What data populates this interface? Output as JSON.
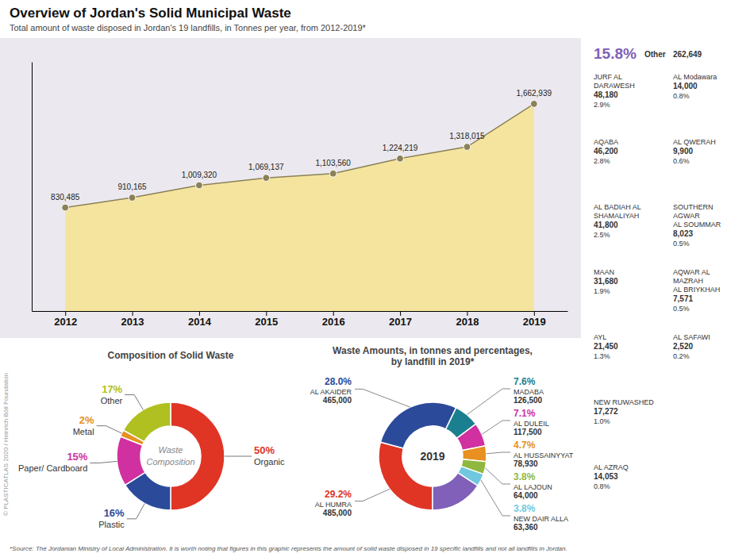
{
  "chart_data": [
    {
      "type": "area",
      "title": "Overview of Jordan's Solid Municipal Waste",
      "subtitle": "Total amount of waste disposed in Jordan's 19 landfills, in Tonnes per year, from 2012-2019*",
      "categories": [
        "2012",
        "2013",
        "2014",
        "2015",
        "2016",
        "2017",
        "2018",
        "2019"
      ],
      "values": [
        830485,
        910165,
        1009320,
        1069137,
        1103560,
        1224219,
        1318015,
        1662939
      ],
      "value_labels": [
        "830,485",
        "910,165",
        "1,009,320",
        "1,069,137",
        "1,103,560",
        "1,224,219",
        "1,318,015",
        "1,662,939"
      ],
      "data_labels": true,
      "color": "#f5e49e",
      "marker": "circle",
      "ylim": [
        0,
        2000000
      ],
      "tick_labels": "x",
      "annotations": [
        "*Source: The Jordanian Ministry of Local Administration. It is worth noting that figures in this graphic represents the amount of solid waste disposed in 19 specific landfills and not all landfills in Jordan.",
        "© PLASTICATLAS 2020 / Heinrich Böll Foundation"
      ]
    },
    {
      "type": "pie",
      "title": "Composition of Solid Waste",
      "categories": [
        "Organic",
        "Plastic",
        "Paper/ Cardboard",
        "Metal",
        "Other"
      ],
      "values": [
        50,
        16,
        15,
        2,
        17
      ],
      "value_labels": [
        "50%",
        "16%",
        "15%",
        "2%",
        "17%"
      ],
      "data_labels": true,
      "colors": [
        "#e03525",
        "#2b4b9a",
        "#d030a0",
        "#e89020",
        "#afc020"
      ],
      "annotations": [
        "Waste",
        "Composition"
      ]
    },
    {
      "type": "pie",
      "title": "Waste Amounts, in tonnes and percentages,\nby landfill in 2019*",
      "categories": [
        "AL HUMRA",
        "AL AKAIDER",
        "MADABA",
        "AL DULEIL",
        "AL HUSSAINYYAT",
        "AL LAJOUN",
        "NEW DAIR ALLA",
        "Other"
      ],
      "values": [
        29.2,
        28.0,
        7.6,
        7.1,
        4.7,
        3.8,
        3.8,
        15.8
      ],
      "value_labels": [
        "29.2%",
        "28.0%",
        "7.6%",
        "7.1%",
        "4.7%",
        "3.8%",
        "3.8%",
        "15.8%"
      ],
      "amounts": [
        485000,
        465000,
        126500,
        117500,
        78930,
        64000,
        63360,
        262649
      ],
      "amount_labels": [
        "485,000",
        "465,000",
        "126,500",
        "117,500",
        "78,930",
        "64,000",
        "63,360",
        "262,649"
      ],
      "data_labels": true,
      "colors": [
        "#e03525",
        "#2b4b9a",
        "#1a8090",
        "#d030a0",
        "#e89020",
        "#90b840",
        "#70c8e0",
        "#8060b8"
      ],
      "annotations": [
        "2019"
      ]
    },
    {
      "type": "table",
      "categories": [
        "JURF AL\nDARAWESH",
        "AQABA",
        "AL BADIAH AL\nSHAMALIYAH",
        "MAAN",
        "AYL",
        "NEW RUWASHED",
        "AL AZRAQ",
        "AL Modawara",
        "AL QWERAH",
        "SOUTHERN\nAGWAR\nAL SOUMMAR",
        "AQWAR AL\nMAZRAH\nAL BRIYKHAH",
        "AL SAFAWI"
      ],
      "values": [
        2.9,
        2.8,
        2.5,
        1.9,
        1.3,
        1.0,
        0.8,
        0.8,
        0.6,
        0.5,
        0.5,
        0.2
      ],
      "value_labels": [
        "2.9%",
        "2.8%",
        "2.5%",
        "1.9%",
        "1.3%",
        "1.0%",
        "0.8%",
        "0.8%",
        "0.6%",
        "0.5%",
        "0.5%",
        "0.2%"
      ],
      "amounts": [
        48180,
        46200,
        41800,
        31680,
        21450,
        17272,
        14053,
        14000,
        9900,
        8023,
        7571,
        2520
      ],
      "amount_labels": [
        "48,180",
        "46,200",
        "41,800",
        "31,680",
        "21,450",
        "17,272",
        "14,053",
        "14,000",
        "9,900",
        "8,023",
        "7,571",
        "2,520"
      ]
    }
  ]
}
